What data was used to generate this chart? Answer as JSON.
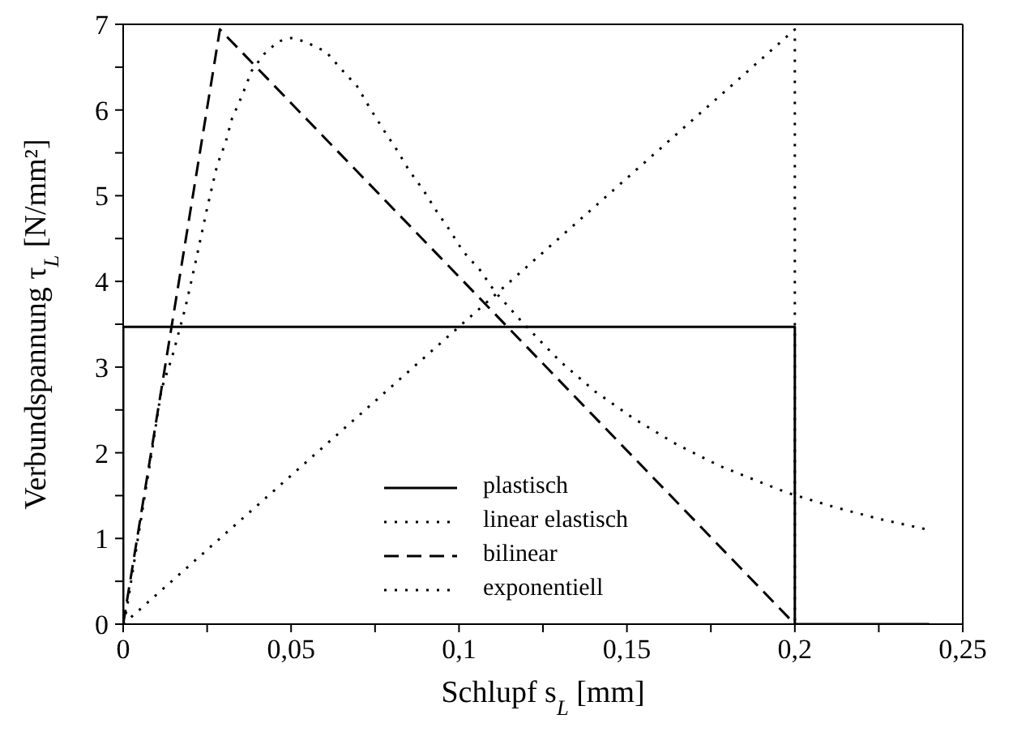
{
  "chart_data": {
    "type": "line",
    "xlabel": "Schlupf s$_{L}$ [mm]",
    "ylabel": "Verbundspannung τ$_{L}$ [N/mm²]",
    "xlim": [
      0,
      0.25
    ],
    "ylim": [
      0,
      7
    ],
    "xticks": [
      0,
      {
        "value": 0.025,
        "label": null
      },
      {
        "value": 0.05,
        "label": "0,05"
      },
      {
        "value": 0.075,
        "label": null
      },
      {
        "value": 0.1,
        "label": "0,1"
      },
      {
        "value": 0.125,
        "label": null
      },
      {
        "value": 0.15,
        "label": "0,15"
      },
      {
        "value": 0.175,
        "label": null
      },
      {
        "value": 0.2,
        "label": "0,2"
      },
      {
        "value": 0.225,
        "label": null
      },
      {
        "value": 0.25,
        "label": "0,25"
      }
    ],
    "yticks": [
      0,
      {
        "value": 0.5,
        "label": null
      },
      1,
      {
        "value": 1.5,
        "label": null
      },
      2,
      {
        "value": 2.5,
        "label": null
      },
      3,
      {
        "value": 3.5,
        "label": null
      },
      4,
      {
        "value": 4.5,
        "label": null
      },
      5,
      {
        "value": 5.5,
        "label": null
      },
      6,
      {
        "value": 6.5,
        "label": null
      },
      7
    ],
    "legend": "bottom",
    "marker": "none",
    "series": [
      {
        "name": "plastisch",
        "color": "#000000",
        "line_style": "solid",
        "x": [
          0,
          0,
          0.2,
          0.2,
          0.24
        ],
        "values": [
          0,
          3.47,
          3.47,
          0,
          0
        ]
      },
      {
        "name": "linear elastisch",
        "color": "#000000",
        "line_style": "dotted",
        "x": [
          0,
          0.2,
          0.2
        ],
        "values": [
          0,
          6.94,
          0
        ]
      },
      {
        "name": "bilinear",
        "color": "#000000",
        "line_style": "dashed",
        "x": [
          0,
          0.0288,
          0.2
        ],
        "values": [
          0,
          6.94,
          0
        ]
      },
      {
        "name": "exponentiell",
        "color": "#000000",
        "line_style": "dotted",
        "x": [
          0,
          0.001,
          0.0043,
          0.0082,
          0.0114,
          0.0146,
          0.0185,
          0.0217,
          0.0248,
          0.028,
          0.0304,
          0.0324,
          0.0351,
          0.0383,
          0.0419,
          0.0462,
          0.05,
          0.054,
          0.0604,
          0.0651,
          0.0696,
          0.0735,
          0.0775,
          0.0814,
          0.0852,
          0.0893,
          0.0933,
          0.0972,
          0.1012,
          0.1063,
          0.1107,
          0.1194,
          0.13,
          0.1407,
          0.152,
          0.1647,
          0.1774,
          0.1908,
          0.198,
          0.2114,
          0.2249,
          0.2399
        ],
        "values": [
          0,
          0.16,
          0.98,
          1.93,
          2.74,
          3.12,
          3.69,
          4.25,
          4.82,
          5.36,
          5.61,
          5.9,
          6.14,
          6.46,
          6.65,
          6.8,
          6.84,
          6.8,
          6.68,
          6.47,
          6.28,
          6.02,
          5.77,
          5.54,
          5.29,
          5.07,
          4.82,
          4.6,
          4.35,
          4.13,
          3.88,
          3.5,
          3.07,
          2.71,
          2.4,
          2.1,
          1.85,
          1.64,
          1.53,
          1.37,
          1.23,
          1.1
        ]
      }
    ]
  }
}
